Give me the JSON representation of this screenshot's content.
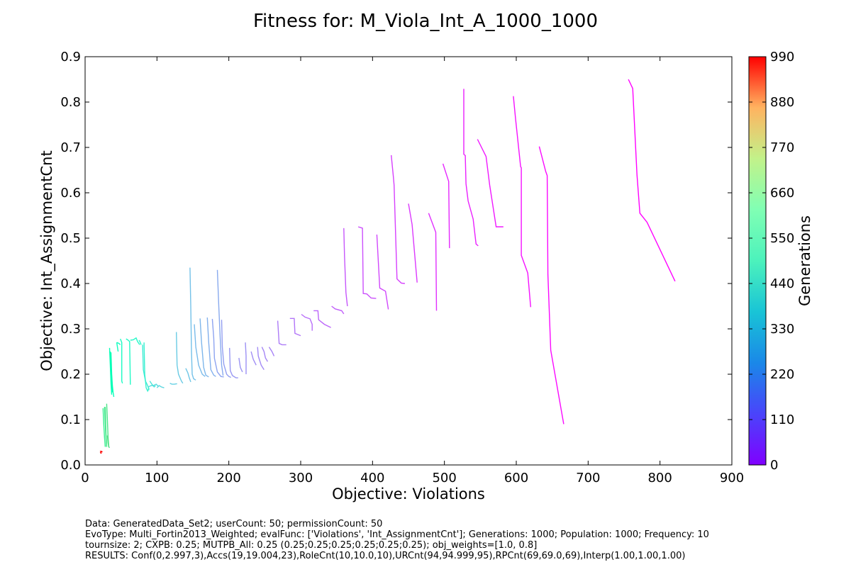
{
  "footer": {
    "line1": "Data: GeneratedData_Set2; userCount: 50; permissionCount: 50",
    "line2": "EvoType: Multi_Fortin2013_Weighted; evalFunc: ['Violations', 'Int_AssignmentCnt']; Generations: 1000; Population: 1000; Frequency: 10",
    "line3": "tournsize: 2; CXPB: 0.25; MUTPB_All: 0.25 (0.25;0.25;0.25;0.25;0.25;0.25); obj_weights=[1.0, 0.8]",
    "line4": "RESULTS: Conf(0,2.997,3),Accs(19,19.004,23),RoleCnt(10,10.0,10),URCnt(94,94.999,95),RPCnt(69,69.0,69),Interp(1.00,1.00,1.00)"
  },
  "chart_data": {
    "type": "line",
    "title": "Fitness for: M_Viola_Int_A_1000_1000",
    "xlabel": "Objective: Violations",
    "ylabel": "Objective: Int_AssignmentCnt",
    "xlim": [
      0,
      900
    ],
    "ylim": [
      0,
      0.9
    ],
    "xticks": [
      0,
      100,
      200,
      300,
      400,
      500,
      600,
      700,
      800,
      900
    ],
    "yticks": [
      "0.0",
      "0.1",
      "0.2",
      "0.3",
      "0.4",
      "0.5",
      "0.6",
      "0.7",
      "0.8",
      "0.9"
    ],
    "colorbar": {
      "label": "Generations",
      "min": 0,
      "max": 990,
      "ticks": [
        0,
        110,
        220,
        330,
        440,
        550,
        660,
        770,
        880,
        990
      ],
      "colormap": "rainbow"
    },
    "series": [
      {
        "gen": 0,
        "points": [
          [
            756,
            0.85
          ],
          [
            762,
            0.83
          ],
          [
            768,
            0.64
          ],
          [
            772,
            0.555
          ],
          [
            782,
            0.535
          ],
          [
            821,
            0.405
          ]
        ]
      },
      {
        "gen": 10,
        "points": [
          [
            632,
            0.702
          ],
          [
            641,
            0.647
          ],
          [
            643,
            0.638
          ],
          [
            644,
            0.42
          ],
          [
            648,
            0.253
          ],
          [
            666,
            0.09
          ]
        ]
      },
      {
        "gen": 20,
        "points": [
          [
            596,
            0.813
          ],
          [
            599,
            0.763
          ],
          [
            606,
            0.658
          ],
          [
            607,
            0.655
          ],
          [
            607,
            0.462
          ],
          [
            616,
            0.423
          ],
          [
            620,
            0.348
          ]
        ]
      },
      {
        "gen": 30,
        "points": [
          [
            546,
            0.718
          ],
          [
            558,
            0.68
          ],
          [
            563,
            0.617
          ],
          [
            572,
            0.525
          ],
          [
            582,
            0.525
          ]
        ]
      },
      {
        "gen": 40,
        "points": [
          [
            527,
            0.829
          ],
          [
            527,
            0.685
          ],
          [
            529,
            0.682
          ],
          [
            530,
            0.62
          ],
          [
            533,
            0.582
          ],
          [
            540,
            0.542
          ],
          [
            544,
            0.487
          ],
          [
            547,
            0.483
          ]
        ]
      },
      {
        "gen": 50,
        "points": [
          [
            498,
            0.664
          ],
          [
            506,
            0.625
          ],
          [
            507,
            0.478
          ]
        ]
      },
      {
        "gen": 60,
        "points": [
          [
            478,
            0.555
          ],
          [
            488,
            0.513
          ],
          [
            489,
            0.34
          ]
        ]
      },
      {
        "gen": 70,
        "points": [
          [
            450,
            0.576
          ],
          [
            455,
            0.53
          ],
          [
            462,
            0.402
          ]
        ]
      },
      {
        "gen": 80,
        "points": [
          [
            426,
            0.683
          ],
          [
            429,
            0.635
          ],
          [
            430,
            0.617
          ],
          [
            434,
            0.41
          ],
          [
            440,
            0.401
          ],
          [
            445,
            0.4
          ]
        ]
      },
      {
        "gen": 90,
        "points": [
          [
            406,
            0.508
          ],
          [
            410,
            0.39
          ],
          [
            418,
            0.383
          ],
          [
            422,
            0.343
          ]
        ]
      },
      {
        "gen": 100,
        "points": [
          [
            380,
            0.525
          ],
          [
            386,
            0.522
          ],
          [
            387,
            0.378
          ],
          [
            392,
            0.377
          ],
          [
            398,
            0.368
          ],
          [
            405,
            0.367
          ]
        ]
      },
      {
        "gen": 110,
        "points": [
          [
            360,
            0.522
          ],
          [
            361,
            0.46
          ],
          [
            363,
            0.38
          ],
          [
            365,
            0.35
          ]
        ]
      },
      {
        "gen": 120,
        "points": [
          [
            343,
            0.35
          ],
          [
            348,
            0.344
          ],
          [
            357,
            0.34
          ],
          [
            360,
            0.333
          ]
        ]
      },
      {
        "gen": 130,
        "points": [
          [
            318,
            0.34
          ],
          [
            324,
            0.34
          ],
          [
            325,
            0.32
          ],
          [
            333,
            0.31
          ],
          [
            342,
            0.303
          ]
        ]
      },
      {
        "gen": 140,
        "points": [
          [
            301,
            0.332
          ],
          [
            306,
            0.326
          ],
          [
            313,
            0.322
          ],
          [
            316,
            0.31
          ],
          [
            316,
            0.296
          ]
        ]
      },
      {
        "gen": 150,
        "points": [
          [
            285,
            0.323
          ],
          [
            291,
            0.323
          ],
          [
            292,
            0.29
          ],
          [
            300,
            0.285
          ]
        ]
      },
      {
        "gen": 160,
        "points": [
          [
            268,
            0.318
          ],
          [
            270,
            0.268
          ],
          [
            274,
            0.265
          ],
          [
            280,
            0.265
          ]
        ]
      },
      {
        "gen": 170,
        "points": [
          [
            256,
            0.26
          ],
          [
            260,
            0.25
          ],
          [
            263,
            0.24
          ]
        ]
      },
      {
        "gen": 175,
        "points": [
          [
            246,
            0.26
          ],
          [
            249,
            0.25
          ],
          [
            251,
            0.236
          ],
          [
            254,
            0.228
          ]
        ]
      },
      {
        "gen": 180,
        "points": [
          [
            240,
            0.26
          ],
          [
            241,
            0.24
          ],
          [
            245,
            0.22
          ],
          [
            249,
            0.21
          ]
        ]
      },
      {
        "gen": 185,
        "points": [
          [
            231,
            0.25
          ],
          [
            234,
            0.233
          ],
          [
            238,
            0.22
          ]
        ]
      },
      {
        "gen": 190,
        "points": [
          [
            223,
            0.27
          ],
          [
            224,
            0.24
          ],
          [
            224,
            0.2
          ]
        ]
      },
      {
        "gen": 195,
        "points": [
          [
            214,
            0.236
          ],
          [
            216,
            0.215
          ],
          [
            219,
            0.205
          ]
        ]
      },
      {
        "gen": 200,
        "points": [
          [
            201,
            0.258
          ],
          [
            202,
            0.208
          ],
          [
            205,
            0.197
          ],
          [
            210,
            0.192
          ],
          [
            213,
            0.192
          ]
        ]
      },
      {
        "gen": 210,
        "points": [
          [
            190,
            0.32
          ],
          [
            191,
            0.26
          ],
          [
            193,
            0.222
          ],
          [
            197,
            0.2
          ],
          [
            200,
            0.195
          ],
          [
            203,
            0.193
          ]
        ]
      },
      {
        "gen": 220,
        "points": [
          [
            177,
            0.322
          ],
          [
            179,
            0.28
          ],
          [
            180,
            0.235
          ],
          [
            184,
            0.205
          ],
          [
            189,
            0.195
          ],
          [
            193,
            0.194
          ]
        ]
      },
      {
        "gen": 230,
        "points": [
          [
            184,
            0.43
          ],
          [
            186,
            0.35
          ],
          [
            188,
            0.28
          ],
          [
            190,
            0.22
          ],
          [
            192,
            0.197
          ]
        ]
      },
      {
        "gen": 240,
        "points": [
          [
            170,
            0.325
          ],
          [
            172,
            0.27
          ],
          [
            175,
            0.21
          ],
          [
            179,
            0.198
          ],
          [
            182,
            0.195
          ]
        ]
      },
      {
        "gen": 250,
        "points": [
          [
            160,
            0.323
          ],
          [
            162,
            0.27
          ],
          [
            165,
            0.215
          ],
          [
            168,
            0.198
          ],
          [
            172,
            0.194
          ]
        ]
      },
      {
        "gen": 260,
        "points": [
          [
            152,
            0.31
          ],
          [
            154,
            0.26
          ],
          [
            158,
            0.22
          ],
          [
            163,
            0.2
          ],
          [
            167,
            0.195
          ]
        ]
      },
      {
        "gen": 270,
        "points": [
          [
            146,
            0.435
          ],
          [
            147,
            0.35
          ],
          [
            148,
            0.25
          ],
          [
            149,
            0.2
          ],
          [
            151,
            0.19
          ],
          [
            154,
            0.187
          ]
        ]
      },
      {
        "gen": 280,
        "points": [
          [
            140,
            0.213
          ],
          [
            143,
            0.203
          ],
          [
            145,
            0.192
          ],
          [
            147,
            0.183
          ]
        ]
      },
      {
        "gen": 290,
        "points": [
          [
            127,
            0.293
          ],
          [
            128,
            0.22
          ],
          [
            130,
            0.2
          ],
          [
            134,
            0.185
          ],
          [
            136,
            0.18
          ]
        ]
      },
      {
        "gen": 300,
        "points": [
          [
            118,
            0.18
          ],
          [
            121,
            0.178
          ],
          [
            124,
            0.178
          ],
          [
            128,
            0.179
          ]
        ]
      },
      {
        "gen": 315,
        "points": [
          [
            100,
            0.17
          ],
          [
            103,
            0.175
          ],
          [
            106,
            0.172
          ],
          [
            110,
            0.17
          ]
        ]
      },
      {
        "gen": 330,
        "points": [
          [
            88,
            0.172
          ],
          [
            92,
            0.175
          ],
          [
            95,
            0.175
          ],
          [
            99,
            0.178
          ],
          [
            102,
            0.173
          ]
        ]
      },
      {
        "gen": 350,
        "points": [
          [
            90,
            0.185
          ],
          [
            93,
            0.178
          ],
          [
            96,
            0.172
          ],
          [
            98,
            0.175
          ]
        ]
      },
      {
        "gen": 370,
        "points": [
          [
            80,
            0.265
          ],
          [
            81,
            0.21
          ],
          [
            84,
            0.185
          ],
          [
            87,
            0.175
          ],
          [
            89,
            0.165
          ]
        ]
      },
      {
        "gen": 390,
        "points": [
          [
            82,
            0.27
          ],
          [
            83,
            0.2
          ],
          [
            85,
            0.17
          ],
          [
            87,
            0.163
          ],
          [
            89,
            0.17
          ]
        ]
      },
      {
        "gen": 410,
        "points": [
          [
            75,
            0.275
          ],
          [
            76,
            0.273
          ],
          [
            78,
            0.265
          ]
        ]
      },
      {
        "gen": 420,
        "points": [
          [
            63,
            0.275
          ],
          [
            67,
            0.276
          ],
          [
            71,
            0.28
          ],
          [
            73,
            0.272
          ],
          [
            76,
            0.265
          ]
        ]
      },
      {
        "gen": 430,
        "points": [
          [
            57,
            0.278
          ],
          [
            60,
            0.275
          ],
          [
            62,
            0.272
          ],
          [
            63,
            0.177
          ]
        ]
      },
      {
        "gen": 440,
        "points": [
          [
            49,
            0.278
          ],
          [
            51,
            0.27
          ],
          [
            51,
            0.185
          ],
          [
            52,
            0.18
          ]
        ]
      },
      {
        "gen": 450,
        "points": [
          [
            44,
            0.27
          ],
          [
            47,
            0.268
          ],
          [
            49,
            0.265
          ]
        ]
      },
      {
        "gen": 460,
        "points": [
          [
            44,
            0.27
          ],
          [
            45,
            0.26
          ],
          [
            46,
            0.25
          ]
        ]
      },
      {
        "gen": 470,
        "points": [
          [
            36,
            0.248
          ],
          [
            37,
            0.2
          ],
          [
            38,
            0.175
          ],
          [
            39,
            0.16
          ],
          [
            40,
            0.15
          ]
        ]
      },
      {
        "gen": 480,
        "points": [
          [
            34,
            0.258
          ],
          [
            35,
            0.22
          ],
          [
            36,
            0.18
          ],
          [
            37,
            0.155
          ]
        ]
      },
      {
        "gen": 495,
        "points": [
          [
            35,
            0.25
          ],
          [
            36,
            0.23
          ],
          [
            37,
            0.19
          ],
          [
            38,
            0.16
          ]
        ]
      },
      {
        "gen": 610,
        "points": [
          [
            25,
            0.125
          ],
          [
            26,
            0.09
          ],
          [
            27,
            0.06
          ],
          [
            28,
            0.04
          ]
        ]
      },
      {
        "gen": 620,
        "points": [
          [
            27,
            0.128
          ],
          [
            28,
            0.09
          ],
          [
            29,
            0.06
          ],
          [
            30,
            0.04
          ]
        ]
      },
      {
        "gen": 630,
        "points": [
          [
            28,
            0.128
          ],
          [
            28.5,
            0.1
          ],
          [
            29,
            0.07
          ],
          [
            30,
            0.04
          ]
        ]
      },
      {
        "gen": 640,
        "points": [
          [
            30,
            0.135
          ],
          [
            31,
            0.1
          ],
          [
            32,
            0.06
          ],
          [
            33,
            0.04
          ]
        ]
      },
      {
        "gen": 650,
        "points": [
          [
            31,
            0.065
          ],
          [
            32,
            0.048
          ],
          [
            33,
            0.04
          ],
          [
            34,
            0.038
          ]
        ]
      },
      {
        "gen": 990,
        "points": [
          [
            21,
            0.031
          ],
          [
            22,
            0.029
          ],
          [
            23,
            0.03
          ],
          [
            24,
            0.028
          ]
        ]
      },
      {
        "gen": 980,
        "points": [
          [
            21,
            0.028
          ],
          [
            22,
            0.026
          ],
          [
            23,
            0.027
          ]
        ]
      }
    ]
  }
}
